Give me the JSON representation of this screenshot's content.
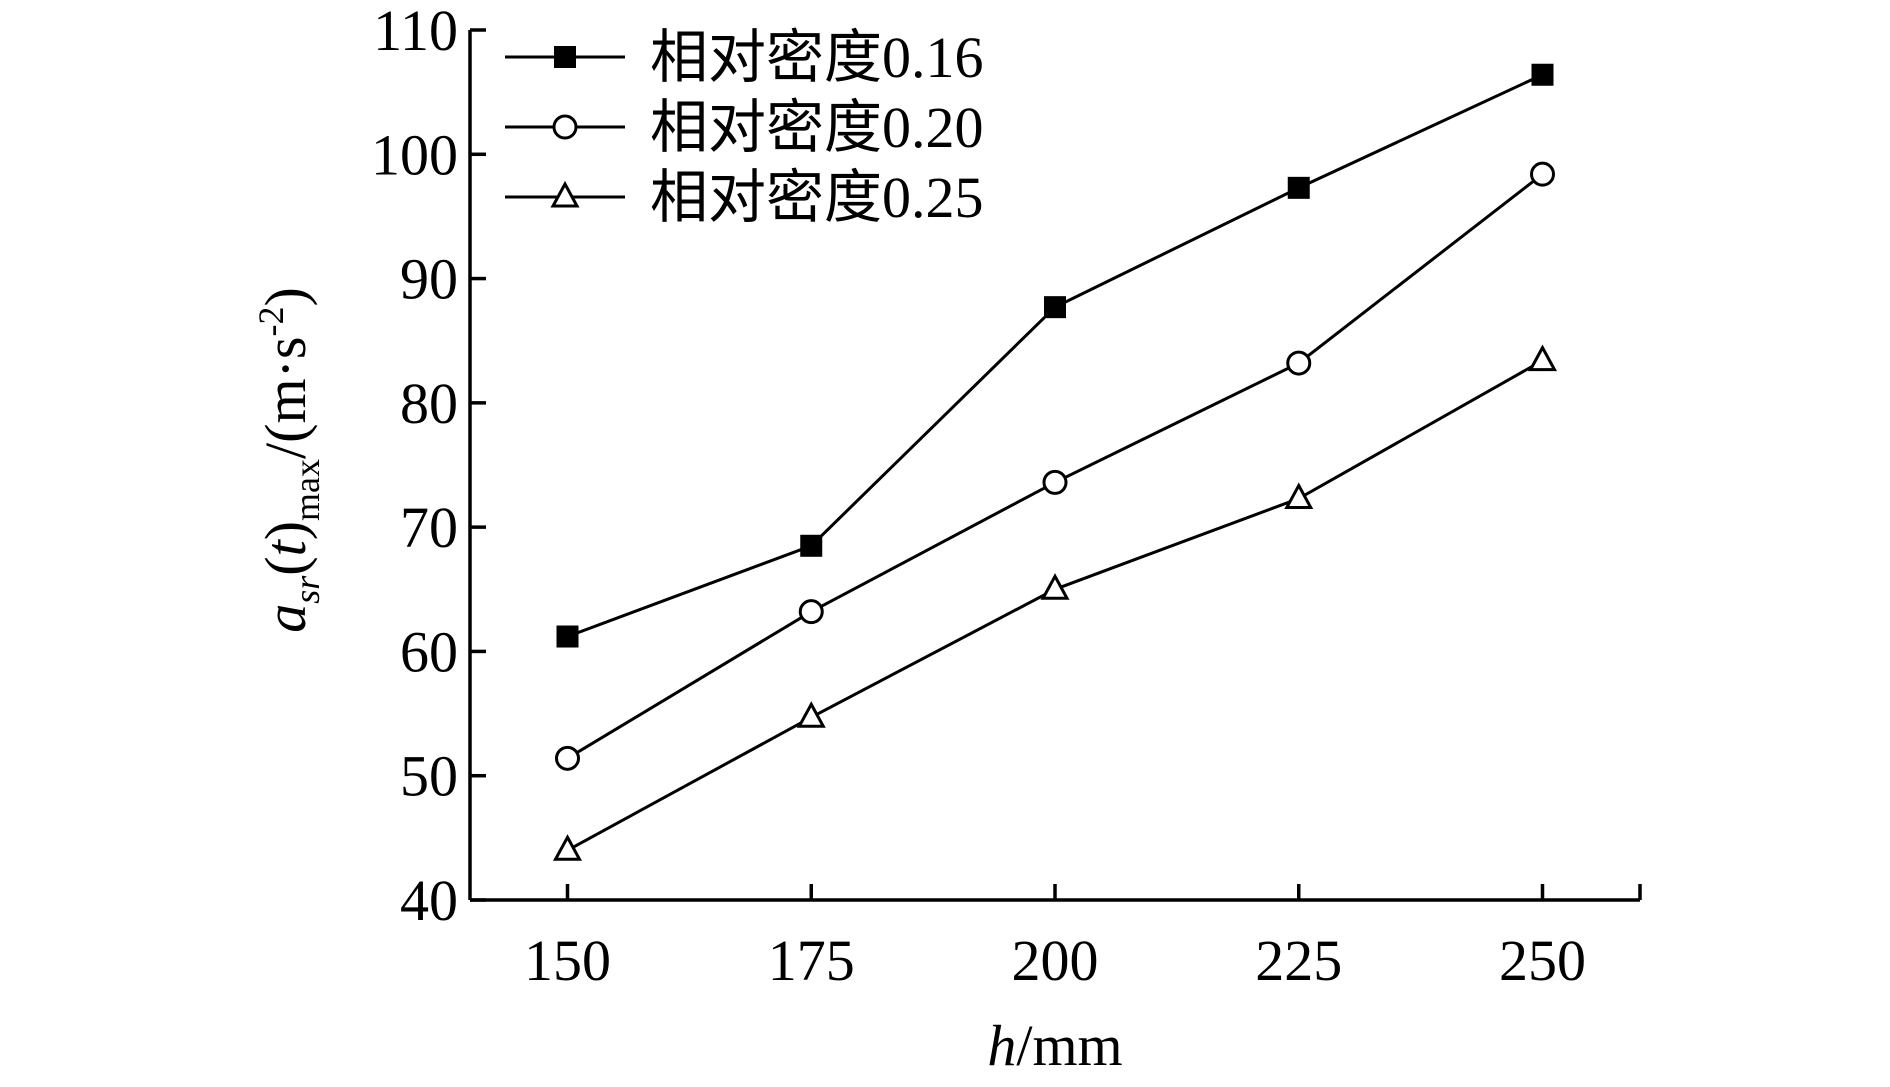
{
  "chart_data": {
    "type": "line",
    "xlabel": {
      "italic": "h",
      "rest": "/mm"
    },
    "ylabel": {
      "base": "a",
      "sub1": "sr",
      "mid": "(",
      "var": "t",
      "close": ")",
      "sub2": "max",
      "units_pre": "/(m·s",
      "units_sup": "-2",
      "units_post": ")"
    },
    "x": [
      150,
      175,
      200,
      225,
      250
    ],
    "x_ticks": [
      "150",
      "175",
      "200",
      "225",
      "250"
    ],
    "xlim": [
      140,
      260
    ],
    "ylim": [
      40,
      110
    ],
    "y_ticks": [
      "40",
      "50",
      "60",
      "70",
      "80",
      "90",
      "100",
      "110"
    ],
    "y_tick_values": [
      40,
      50,
      60,
      70,
      80,
      90,
      100,
      110
    ],
    "grid": false,
    "legend_position": "top-left",
    "series": [
      {
        "name": "相对密度0.16",
        "marker": "filled-square",
        "color": "#000000",
        "values": [
          61.2,
          68.5,
          87.7,
          97.3,
          106.4
        ]
      },
      {
        "name": "相对密度0.20",
        "marker": "open-circle",
        "color": "#000000",
        "values": [
          51.4,
          63.2,
          73.6,
          83.2,
          98.4
        ]
      },
      {
        "name": "相对密度0.25",
        "marker": "open-triangle",
        "color": "#000000",
        "values": [
          44.0,
          54.7,
          65.0,
          72.3,
          83.4
        ]
      }
    ]
  }
}
